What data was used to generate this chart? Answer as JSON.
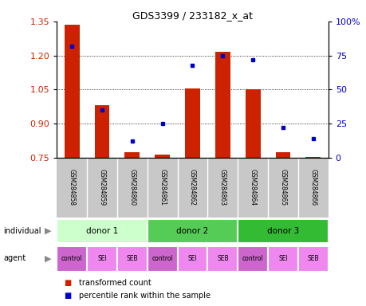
{
  "title": "GDS3399 / 233182_x_at",
  "samples": [
    "GSM284858",
    "GSM284859",
    "GSM284860",
    "GSM284861",
    "GSM284862",
    "GSM284863",
    "GSM284864",
    "GSM284865",
    "GSM284866"
  ],
  "red_values": [
    1.335,
    0.98,
    0.775,
    0.762,
    1.053,
    1.215,
    1.052,
    0.775,
    0.752
  ],
  "blue_values": [
    82,
    35,
    12,
    25,
    68,
    75,
    72,
    22,
    14
  ],
  "ylim_left": [
    0.75,
    1.35
  ],
  "ylim_right": [
    0,
    100
  ],
  "yticks_left": [
    0.75,
    0.9,
    1.05,
    1.2,
    1.35
  ],
  "yticks_right": [
    0,
    25,
    50,
    75,
    100
  ],
  "ytick_labels_right": [
    "0",
    "25",
    "50",
    "75",
    "100%"
  ],
  "bar_color": "#cc2200",
  "dot_color": "#0000cc",
  "donors": [
    {
      "label": "donor 1",
      "start": 0,
      "end": 3,
      "color": "#ccffcc"
    },
    {
      "label": "donor 2",
      "start": 3,
      "end": 6,
      "color": "#55cc55"
    },
    {
      "label": "donor 3",
      "start": 6,
      "end": 9,
      "color": "#33bb33"
    }
  ],
  "agents": [
    "control",
    "SEI",
    "SEB",
    "control",
    "SEI",
    "SEB",
    "control",
    "SEI",
    "SEB"
  ],
  "agent_bg_colors": [
    "#cc66cc",
    "#ee88ee",
    "#ee88ee",
    "#cc66cc",
    "#ee88ee",
    "#ee88ee",
    "#cc66cc",
    "#ee88ee",
    "#ee88ee"
  ],
  "legend_red": "transformed count",
  "legend_blue": "percentile rank within the sample",
  "individual_label": "individual",
  "agent_label": "agent",
  "grid_color": "#000000",
  "baseline": 0.75,
  "sample_row_bg": "#c8c8c8",
  "sample_sep_color": "#ffffff"
}
